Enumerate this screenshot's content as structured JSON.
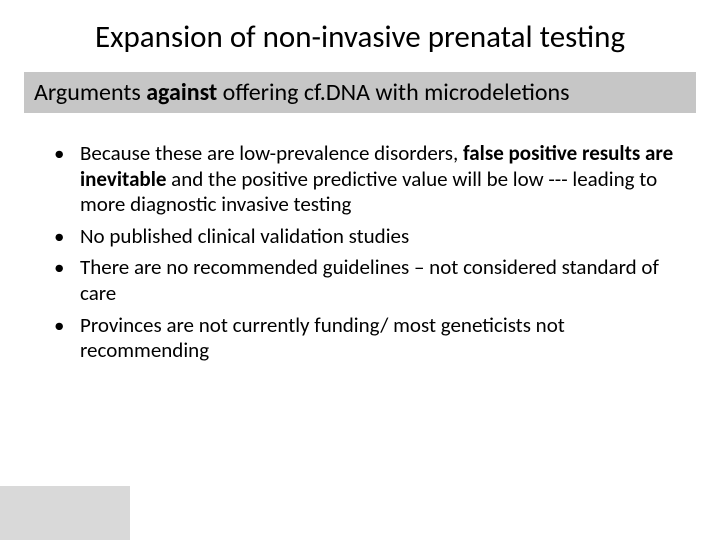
{
  "colors": {
    "background": "#ffffff",
    "subtitle_bar": "#c6c6c6",
    "footer_block": "#d9d9d9",
    "text": "#000000"
  },
  "typography": {
    "title_fontsize": 31,
    "subtitle_fontsize": 24,
    "body_fontsize": 21,
    "font_family": "Calibri"
  },
  "title": "Expansion of non-invasive prenatal testing",
  "subtitle": {
    "pre": "Arguments ",
    "bold": "against",
    "post": " offering cf.DNA with microdeletions"
  },
  "bullets": [
    {
      "pre": "Because these are low-prevalence disorders, ",
      "bold": "false positive results are inevitable",
      "post": " and the positive predictive value will be low --- leading to more diagnostic invasive testing"
    },
    {
      "pre": "No published clinical validation studies",
      "bold": "",
      "post": ""
    },
    {
      "pre": "There are no recommended guidelines – not considered standard of care",
      "bold": "",
      "post": ""
    },
    {
      "pre": "Provinces are not currently funding/ most geneticists not recommending",
      "bold": "",
      "post": ""
    }
  ]
}
